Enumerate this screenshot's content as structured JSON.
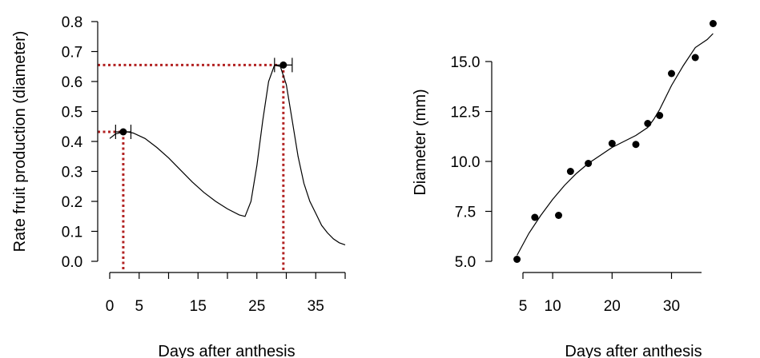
{
  "chart_data": [
    {
      "type": "line",
      "xlabel": "Days after anthesis",
      "ylabel": "Rate fruit production (diameter)",
      "xlim": [
        0,
        40
      ],
      "ylim": [
        0,
        0.8
      ],
      "xticks": [
        0,
        5,
        10,
        15,
        20,
        25,
        30,
        35,
        40
      ],
      "xtick_labels": [
        "0",
        "5",
        "15",
        "25",
        "35"
      ],
      "xtick_label_values": [
        0,
        5,
        15,
        25,
        35
      ],
      "yticks": [
        0.0,
        0.1,
        0.2,
        0.3,
        0.4,
        0.5,
        0.6,
        0.7,
        0.8
      ],
      "ytick_labels": [
        "0.0",
        "0.1",
        "0.2",
        "0.3",
        "0.4",
        "0.5",
        "0.6",
        "0.7",
        "0.8"
      ],
      "grid": false,
      "series": [
        {
          "x": [
            0,
            1,
            2,
            3,
            4,
            6,
            8,
            10,
            12,
            14,
            16,
            18,
            20,
            22,
            23,
            24,
            25,
            26,
            27,
            28,
            29,
            30,
            31,
            32,
            33,
            34,
            35,
            36,
            37,
            38,
            39,
            40
          ],
          "y": [
            0.41,
            0.425,
            0.43,
            0.432,
            0.428,
            0.41,
            0.38,
            0.345,
            0.305,
            0.265,
            0.23,
            0.2,
            0.175,
            0.155,
            0.15,
            0.2,
            0.32,
            0.47,
            0.6,
            0.655,
            0.65,
            0.59,
            0.47,
            0.35,
            0.26,
            0.2,
            0.16,
            0.12,
            0.095,
            0.075,
            0.062,
            0.055
          ]
        }
      ],
      "peaks": [
        {
          "x": 2.3,
          "y": 0.432,
          "x_err": 1.3
        },
        {
          "x": 29.5,
          "y": 0.655,
          "x_err": 1.5
        }
      ],
      "colors": {
        "line": "#000000",
        "guides": "#b22222"
      }
    },
    {
      "type": "scatter",
      "xlabel": "Days after anthesis",
      "ylabel": "Diameter (mm)",
      "xlim": [
        3,
        36
      ],
      "ylim": [
        5.0,
        17.0
      ],
      "xticks": [
        5,
        10,
        20,
        30
      ],
      "xtick_labels": [
        "5",
        "10",
        "20",
        "30"
      ],
      "yticks": [
        5.0,
        7.5,
        10.0,
        12.5,
        15.0
      ],
      "ytick_labels": [
        "5.0",
        "7.5",
        "10.0",
        "12.5",
        "15.0"
      ],
      "grid": false,
      "points": {
        "x": [
          4,
          7,
          11,
          13,
          16,
          20,
          24,
          26,
          28,
          30,
          34,
          37
        ],
        "y": [
          5.1,
          7.2,
          7.3,
          9.5,
          9.9,
          10.9,
          10.85,
          11.9,
          12.3,
          14.4,
          15.2,
          16.9
        ]
      },
      "fit": {
        "x": [
          4,
          6,
          8,
          10,
          12,
          14,
          16,
          18,
          20,
          22,
          24,
          26,
          27,
          28,
          30,
          32,
          34,
          36,
          37
        ],
        "y": [
          5.3,
          6.4,
          7.3,
          8.1,
          8.8,
          9.4,
          9.9,
          10.3,
          10.7,
          11.0,
          11.3,
          11.7,
          12.1,
          12.6,
          13.8,
          14.8,
          15.7,
          16.1,
          16.4
        ]
      },
      "colors": {
        "points": "#000000",
        "line": "#000000"
      }
    }
  ]
}
